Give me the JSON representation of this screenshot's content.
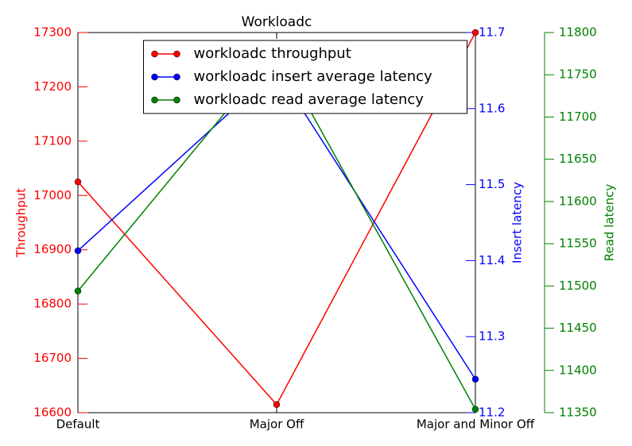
{
  "chart_data": {
    "type": "line",
    "title": "Workloadc",
    "categories": [
      "Default",
      "Major Off",
      "Major and Minor Off"
    ],
    "series": [
      {
        "name": "workloadc throughput",
        "color": "#ff0000",
        "axis": "y",
        "values": [
          17025,
          16615,
          17300
        ]
      },
      {
        "name": "workloadc insert average latency",
        "color": "#0000ff",
        "axis": "y2",
        "values": [
          11.413,
          11.651,
          11.244
        ]
      },
      {
        "name": "workloadc read average latency",
        "color": "#008000",
        "axis": "y3",
        "values": [
          11494,
          11779,
          11354
        ]
      }
    ],
    "ylabel": "Throughput",
    "ylim": [
      16600,
      17300
    ],
    "yticks": [
      16600,
      16700,
      16800,
      16900,
      17000,
      17100,
      17200,
      17300
    ],
    "y2label": "Insert latency",
    "y2lim": [
      11.2,
      11.7
    ],
    "y2ticks": [
      11.2,
      11.3,
      11.4,
      11.5,
      11.6,
      11.7
    ],
    "y3label": "Read latency",
    "y3lim": [
      11350,
      11800
    ],
    "y3ticks": [
      11350,
      11400,
      11450,
      11500,
      11550,
      11600,
      11650,
      11700,
      11750,
      11800
    ],
    "legend": "upper center"
  }
}
